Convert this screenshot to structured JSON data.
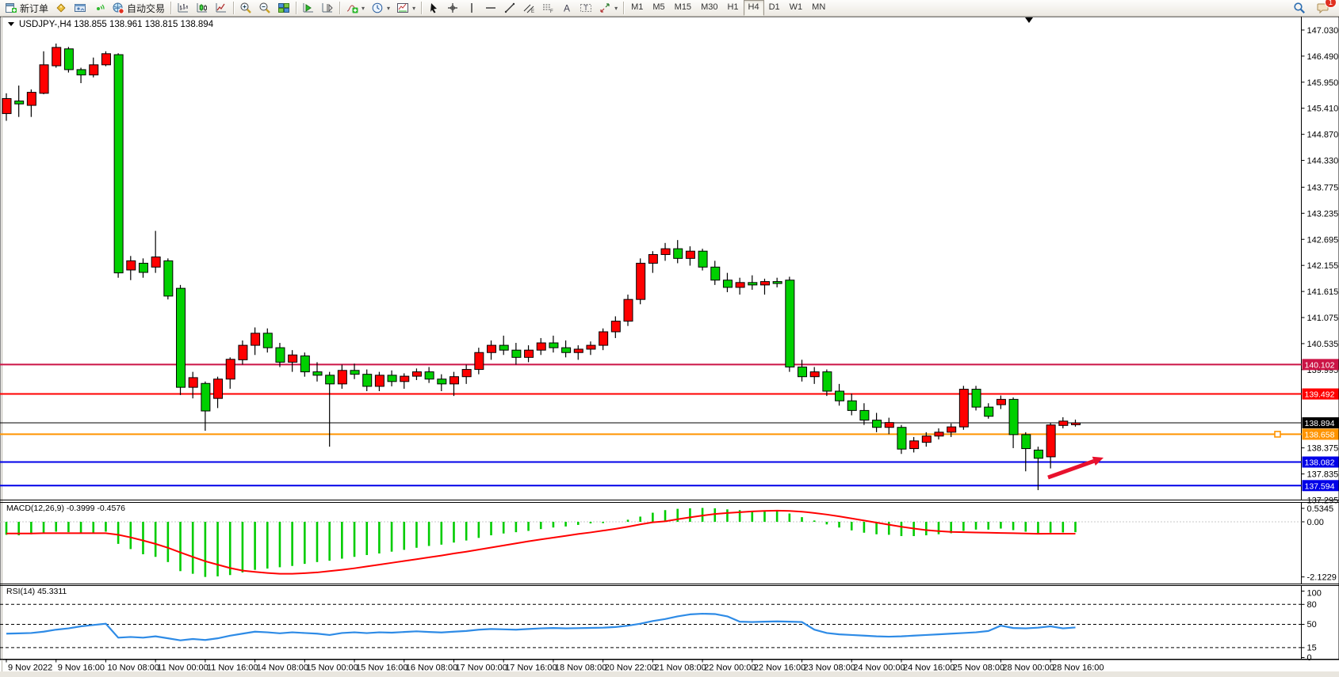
{
  "window": {
    "collapse_marker": "▼",
    "chart_title": "USDJPY-,H4  138.855 138.961 138.815 138.894"
  },
  "toolbar": {
    "buttons": [
      {
        "name": "new-order-button",
        "icon": "new-order-icon",
        "label": "新订单"
      },
      {
        "name": "profiles-button",
        "icon": "gold-badge-icon"
      },
      {
        "name": "market-watch-button",
        "icon": "window-icon"
      },
      {
        "name": "signals-button",
        "icon": "signal-icon"
      },
      {
        "name": "autotrading-button",
        "icon": "autotrade-globe-icon",
        "label": "自动交易"
      },
      {
        "sep": true
      },
      {
        "name": "bar-chart-button",
        "icon": "ohlc-bars-icon"
      },
      {
        "name": "candle-chart-button",
        "icon": "candlestick-icon"
      },
      {
        "name": "line-chart-button",
        "icon": "line-chart-icon"
      },
      {
        "sep": true
      },
      {
        "name": "zoom-in-button",
        "icon": "zoom-in-icon"
      },
      {
        "name": "zoom-out-button",
        "icon": "zoom-out-icon"
      },
      {
        "name": "tile-windows-button",
        "icon": "tile-windows-icon"
      },
      {
        "sep": true
      },
      {
        "name": "auto-scroll-button",
        "icon": "auto-scroll-icon"
      },
      {
        "name": "chart-shift-button",
        "icon": "chart-shift-icon"
      },
      {
        "sep": true
      },
      {
        "name": "indicators-button",
        "icon": "indicators-icon",
        "caret": true
      },
      {
        "name": "periods-button",
        "icon": "clock-icon",
        "caret": true
      },
      {
        "name": "templates-button",
        "icon": "template-icon",
        "caret": true
      },
      {
        "sep": true
      },
      {
        "name": "cursor-button",
        "icon": "cursor-icon"
      },
      {
        "name": "crosshair-button",
        "icon": "crosshair-icon"
      },
      {
        "name": "vline-button",
        "icon": "vline-icon"
      },
      {
        "name": "hline-button",
        "icon": "hline-icon"
      },
      {
        "name": "trendline-button",
        "icon": "trendline-icon"
      },
      {
        "name": "channel-button",
        "icon": "channel-icon"
      },
      {
        "name": "fibonacci-button",
        "icon": "fibonacci-icon"
      },
      {
        "name": "text-button",
        "icon": "text-a-icon"
      },
      {
        "name": "text-label-button",
        "icon": "text-label-icon"
      },
      {
        "name": "arrows-button",
        "icon": "arrows-icon",
        "caret": true
      },
      {
        "sep": true
      }
    ],
    "timeframes": [
      {
        "label": "M1"
      },
      {
        "label": "M5"
      },
      {
        "label": "M15"
      },
      {
        "label": "M30"
      },
      {
        "label": "H1"
      },
      {
        "label": "H4",
        "active": true
      },
      {
        "label": "D1"
      },
      {
        "label": "W1"
      },
      {
        "label": "MN"
      }
    ],
    "right_buttons": [
      {
        "name": "search-button",
        "icon": "search-icon"
      },
      {
        "name": "community-button",
        "icon": "chat-icon",
        "badge": "1"
      }
    ]
  },
  "chart_data": {
    "type": "candlestick-with-indicators",
    "symbol": "USDJPY-",
    "period": "H4",
    "current_ohlc": {
      "open": "138.855",
      "high": "138.961",
      "low": "138.815",
      "close": "138.894"
    },
    "x_time_labels": [
      "9 Nov 2022",
      "9 Nov 16:00",
      "10 Nov 08:00",
      "11 Nov 00:00",
      "11 Nov 16:00",
      "14 Nov 08:00",
      "15 Nov 00:00",
      "15 Nov 16:00",
      "16 Nov 08:00",
      "17 Nov 00:00",
      "17 Nov 16:00",
      "18 Nov 08:00",
      "20 Nov 22:00",
      "21 Nov 08:00",
      "22 Nov 00:00",
      "22 Nov 16:00",
      "23 Nov 08:00",
      "24 Nov 00:00",
      "24 Nov 16:00",
      "25 Nov 08:00",
      "28 Nov 00:00",
      "28 Nov 16:00"
    ],
    "price_axis_ticks": [
      "147.030",
      "146.490",
      "145.950",
      "145.410",
      "144.870",
      "144.330",
      "143.775",
      "143.235",
      "142.695",
      "142.155",
      "141.615",
      "141.075",
      "140.535",
      "139.995",
      "138.375",
      "137.835",
      "137.295"
    ],
    "ylim": [
      137.295,
      147.275
    ],
    "bull_color": "#ff0000",
    "bear_color": "#00d000",
    "ohlc": [
      [
        145.3,
        145.72,
        145.15,
        145.61
      ],
      [
        145.56,
        145.88,
        145.23,
        145.5
      ],
      [
        145.47,
        145.8,
        145.23,
        145.74
      ],
      [
        145.72,
        146.59,
        145.7,
        146.31
      ],
      [
        146.29,
        146.75,
        146.25,
        146.67
      ],
      [
        146.64,
        146.68,
        146.15,
        146.21
      ],
      [
        146.21,
        146.25,
        145.93,
        146.1
      ],
      [
        146.1,
        146.46,
        146.05,
        146.31
      ],
      [
        146.31,
        146.59,
        146.28,
        146.54
      ],
      [
        146.52,
        146.55,
        141.9,
        142.0
      ],
      [
        142.06,
        142.35,
        141.85,
        142.25
      ],
      [
        142.2,
        142.3,
        141.9,
        142.01
      ],
      [
        142.12,
        142.87,
        142.0,
        142.33
      ],
      [
        142.25,
        142.3,
        141.45,
        141.52
      ],
      [
        141.68,
        141.75,
        139.47,
        139.63
      ],
      [
        139.63,
        139.95,
        139.4,
        139.83
      ],
      [
        139.71,
        139.75,
        138.73,
        139.14
      ],
      [
        139.4,
        139.85,
        139.2,
        139.8
      ],
      [
        139.8,
        140.25,
        139.6,
        140.21
      ],
      [
        140.2,
        140.6,
        140.1,
        140.5
      ],
      [
        140.5,
        140.87,
        140.3,
        140.75
      ],
      [
        140.75,
        140.85,
        140.35,
        140.45
      ],
      [
        140.45,
        140.55,
        140.05,
        140.15
      ],
      [
        140.15,
        140.4,
        139.95,
        140.3
      ],
      [
        140.28,
        140.35,
        139.85,
        139.95
      ],
      [
        139.95,
        140.15,
        139.75,
        139.88
      ],
      [
        139.88,
        139.95,
        138.4,
        139.7
      ],
      [
        139.7,
        140.1,
        139.6,
        139.98
      ],
      [
        139.98,
        140.12,
        139.8,
        139.9
      ],
      [
        139.9,
        140.0,
        139.55,
        139.65
      ],
      [
        139.65,
        139.95,
        139.55,
        139.88
      ],
      [
        139.88,
        139.98,
        139.65,
        139.75
      ],
      [
        139.75,
        139.92,
        139.6,
        139.86
      ],
      [
        139.86,
        140.02,
        139.78,
        139.95
      ],
      [
        139.95,
        140.05,
        139.72,
        139.8
      ],
      [
        139.8,
        139.9,
        139.55,
        139.7
      ],
      [
        139.7,
        139.95,
        139.45,
        139.85
      ],
      [
        139.85,
        140.1,
        139.7,
        140.0
      ],
      [
        140.0,
        140.45,
        139.9,
        140.35
      ],
      [
        140.35,
        140.6,
        140.2,
        140.5
      ],
      [
        140.5,
        140.7,
        140.3,
        140.4
      ],
      [
        140.4,
        140.55,
        140.1,
        140.25
      ],
      [
        140.25,
        140.5,
        140.15,
        140.4
      ],
      [
        140.4,
        140.65,
        140.3,
        140.55
      ],
      [
        140.55,
        140.7,
        140.35,
        140.45
      ],
      [
        140.45,
        140.6,
        140.25,
        140.35
      ],
      [
        140.35,
        140.5,
        140.2,
        140.42
      ],
      [
        140.42,
        140.58,
        140.3,
        140.5
      ],
      [
        140.5,
        140.85,
        140.4,
        140.78
      ],
      [
        140.78,
        141.1,
        140.65,
        141.0
      ],
      [
        141.0,
        141.55,
        140.9,
        141.45
      ],
      [
        141.45,
        142.3,
        141.35,
        142.2
      ],
      [
        142.2,
        142.45,
        142.0,
        142.38
      ],
      [
        142.38,
        142.62,
        142.25,
        142.5
      ],
      [
        142.5,
        142.68,
        142.2,
        142.3
      ],
      [
        142.3,
        142.55,
        142.15,
        142.45
      ],
      [
        142.45,
        142.5,
        142.05,
        142.12
      ],
      [
        142.12,
        142.25,
        141.75,
        141.85
      ],
      [
        141.85,
        142.0,
        141.6,
        141.7
      ],
      [
        141.7,
        141.9,
        141.55,
        141.8
      ],
      [
        141.8,
        141.95,
        141.65,
        141.75
      ],
      [
        141.75,
        141.88,
        141.55,
        141.82
      ],
      [
        141.82,
        141.9,
        141.7,
        141.78
      ],
      [
        141.85,
        141.92,
        139.95,
        140.05
      ],
      [
        140.05,
        140.2,
        139.75,
        139.85
      ],
      [
        139.85,
        140.05,
        139.7,
        139.95
      ],
      [
        139.95,
        140.0,
        139.45,
        139.55
      ],
      [
        139.55,
        139.7,
        139.25,
        139.35
      ],
      [
        139.35,
        139.5,
        139.05,
        139.15
      ],
      [
        139.15,
        139.3,
        138.85,
        138.95
      ],
      [
        138.95,
        139.1,
        138.7,
        138.8
      ],
      [
        138.8,
        139.0,
        138.66,
        138.9
      ],
      [
        138.8,
        138.85,
        138.25,
        138.35
      ],
      [
        138.36,
        138.6,
        138.28,
        138.52
      ],
      [
        138.49,
        138.7,
        138.4,
        138.62
      ],
      [
        138.62,
        138.78,
        138.55,
        138.7
      ],
      [
        138.7,
        138.88,
        138.6,
        138.81
      ],
      [
        138.81,
        139.66,
        138.75,
        139.59
      ],
      [
        139.59,
        139.66,
        139.15,
        139.22
      ],
      [
        139.22,
        139.3,
        138.98,
        139.03
      ],
      [
        139.27,
        139.46,
        139.18,
        139.38
      ],
      [
        139.38,
        139.42,
        138.37,
        138.65
      ],
      [
        138.65,
        138.7,
        137.89,
        138.36
      ],
      [
        138.33,
        138.4,
        137.5,
        138.16
      ],
      [
        138.19,
        138.9,
        137.95,
        138.85
      ],
      [
        138.84,
        139.01,
        138.78,
        138.93
      ],
      [
        138.855,
        138.961,
        138.815,
        138.894
      ]
    ],
    "hlines": [
      {
        "price": 140.102,
        "label": "140.102",
        "color": "#cc1446",
        "width": 2
      },
      {
        "price": 139.492,
        "label": "139.492",
        "color": "#ff0000",
        "width": 2
      },
      {
        "price": 138.894,
        "label": "138.894",
        "color": "#000000",
        "width": 1,
        "current": true
      },
      {
        "price": 138.658,
        "label": "138.658",
        "color": "#ff9400",
        "width": 2,
        "handle": true
      },
      {
        "price": 138.082,
        "label": "138.082",
        "color": "#0000e8",
        "width": 2
      },
      {
        "price": 137.594,
        "label": "137.594",
        "color": "#0000e8",
        "width": 2
      }
    ],
    "macd": {
      "label": "MACD(12,26,9) -0.3999 -0.4576",
      "axis_labels": [
        "0.5345",
        "0.00",
        "-2.1229"
      ],
      "axis_values": [
        0.5345,
        0.0,
        -2.1229
      ],
      "hist_color": "#00cc00",
      "signal_color": "#ff0000",
      "histogram": [
        -0.5,
        -0.52,
        -0.48,
        -0.42,
        -0.38,
        -0.4,
        -0.45,
        -0.42,
        -0.38,
        -0.85,
        -1.05,
        -1.25,
        -1.35,
        -1.55,
        -1.9,
        -2.0,
        -2.1229,
        -2.1,
        -2.05,
        -1.95,
        -1.85,
        -1.8,
        -1.75,
        -1.7,
        -1.62,
        -1.55,
        -1.5,
        -1.42,
        -1.35,
        -1.28,
        -1.22,
        -1.15,
        -1.08,
        -1.0,
        -0.93,
        -0.88,
        -0.8,
        -0.72,
        -0.62,
        -0.52,
        -0.45,
        -0.4,
        -0.35,
        -0.28,
        -0.22,
        -0.18,
        -0.12,
        -0.06,
        -0.05,
        0.0,
        0.08,
        0.2,
        0.35,
        0.45,
        0.5,
        0.52,
        0.5345,
        0.52,
        0.48,
        0.45,
        0.42,
        0.4,
        0.4,
        0.32,
        0.18,
        0.05,
        -0.1,
        -0.22,
        -0.33,
        -0.42,
        -0.48,
        -0.5,
        -0.55,
        -0.55,
        -0.52,
        -0.48,
        -0.44,
        -0.35,
        -0.3,
        -0.3,
        -0.26,
        -0.32,
        -0.38,
        -0.44,
        -0.42,
        -0.41,
        -0.3999
      ],
      "signal": [
        -0.45,
        -0.45,
        -0.45,
        -0.44,
        -0.44,
        -0.44,
        -0.44,
        -0.44,
        -0.44,
        -0.5,
        -0.6,
        -0.72,
        -0.85,
        -1.0,
        -1.18,
        -1.35,
        -1.52,
        -1.65,
        -1.78,
        -1.88,
        -1.93,
        -1.97,
        -2.0,
        -2.0,
        -1.98,
        -1.95,
        -1.9,
        -1.85,
        -1.79,
        -1.72,
        -1.65,
        -1.58,
        -1.51,
        -1.44,
        -1.37,
        -1.3,
        -1.22,
        -1.15,
        -1.07,
        -0.99,
        -0.91,
        -0.83,
        -0.75,
        -0.68,
        -0.61,
        -0.54,
        -0.47,
        -0.41,
        -0.34,
        -0.27,
        -0.19,
        -0.1,
        -0.02,
        0.02,
        0.1,
        0.17,
        0.24,
        0.3,
        0.34,
        0.37,
        0.4,
        0.42,
        0.43,
        0.42,
        0.39,
        0.34,
        0.28,
        0.21,
        0.13,
        0.05,
        -0.03,
        -0.11,
        -0.19,
        -0.26,
        -0.32,
        -0.36,
        -0.39,
        -0.4,
        -0.41,
        -0.42,
        -0.43,
        -0.44,
        -0.45,
        -0.46,
        -0.458,
        -0.457,
        -0.4576
      ]
    },
    "rsi": {
      "label": "RSI(14) 45.3311",
      "axis_labels": [
        "100",
        "80",
        "50",
        "15",
        "0"
      ],
      "axis_values": [
        100,
        80,
        50,
        15,
        0
      ],
      "levels": [
        80,
        50,
        15
      ],
      "color": "#2e8be6",
      "values": [
        36,
        36.5,
        37,
        39,
        42,
        44,
        47,
        49,
        51,
        30,
        31,
        30,
        32,
        29,
        26,
        28,
        26.5,
        29,
        33,
        36,
        39,
        38,
        36.5,
        38,
        37,
        36,
        34,
        37,
        38,
        36.8,
        38,
        37.5,
        38.5,
        39.5,
        38.5,
        37.8,
        39,
        40,
        42,
        43,
        42.5,
        42,
        43,
        44,
        44.5,
        44,
        44.3,
        44.6,
        45,
        46,
        48,
        51,
        55,
        58,
        62,
        65,
        66,
        65.5,
        62,
        54,
        53.5,
        54,
        54.5,
        54,
        53.5,
        42,
        37,
        35,
        34,
        33,
        32,
        31.5,
        32,
        33,
        34,
        35,
        36,
        37,
        38,
        40,
        48,
        44.5,
        44,
        45,
        47,
        44,
        45.33
      ]
    },
    "annotation_arrow": {
      "from": [
        1322,
        603
      ],
      "to": [
        1392,
        578
      ],
      "color": "#e8112d"
    },
    "shift_marker_x": 1298
  }
}
